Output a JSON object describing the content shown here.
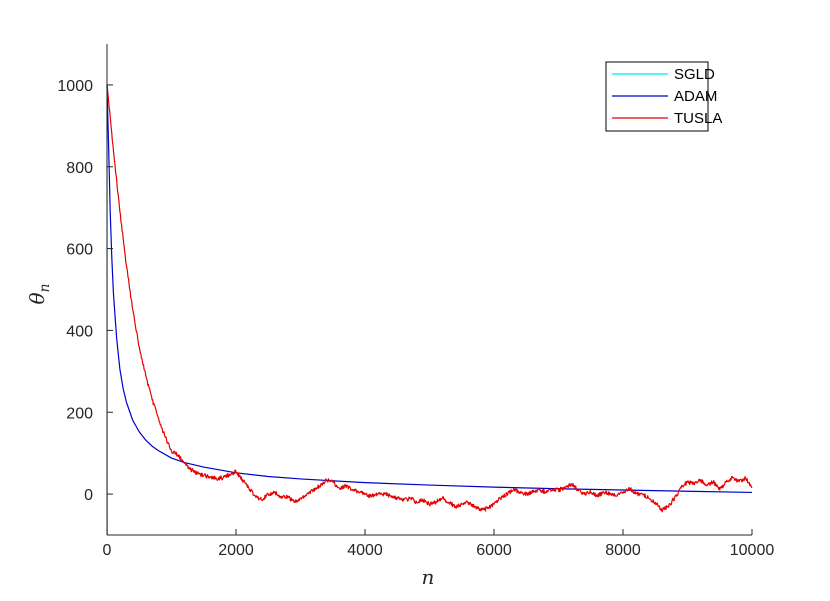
{
  "chart_data": {
    "type": "line",
    "xlabel": "n",
    "ylabel": {
      "base": "θ",
      "sub": "n"
    },
    "xlim": [
      0,
      10000
    ],
    "ylim": [
      -100,
      1100
    ],
    "xticks": [
      0,
      2000,
      4000,
      6000,
      8000,
      10000
    ],
    "yticks": [
      0,
      200,
      400,
      600,
      800,
      1000
    ],
    "xtick_labels": [
      "0",
      "2000",
      "4000",
      "6000",
      "8000",
      "10000"
    ],
    "ytick_labels": [
      "0",
      "200",
      "400",
      "600",
      "800",
      "1000"
    ],
    "grid": false,
    "legend_position": "top-right",
    "series": [
      {
        "name": "SGLD",
        "color": "#00e5e5",
        "x": [
          0,
          1,
          2,
          3,
          5,
          8
        ],
        "y": [
          1000,
          600,
          200,
          0,
          -100,
          -100
        ]
      },
      {
        "name": "ADAM",
        "color": "#0000cc",
        "x": [
          0,
          25,
          50,
          75,
          100,
          150,
          200,
          250,
          300,
          400,
          500,
          600,
          700,
          800,
          1000,
          1200,
          1500,
          2000,
          2500,
          3000,
          4000,
          5000,
          6000,
          7000,
          8000,
          9000,
          10000
        ],
        "y": [
          1000,
          850,
          690,
          575,
          490,
          380,
          305,
          258,
          225,
          180,
          152,
          132,
          117,
          106,
          88,
          77,
          66,
          52,
          43,
          37,
          28,
          22,
          17,
          13,
          10,
          7,
          4
        ]
      },
      {
        "name": "TUSLA",
        "color": "#e60000",
        "x": [
          0,
          100,
          200,
          300,
          400,
          500,
          600,
          700,
          800,
          900,
          1000,
          1100,
          1200,
          1300,
          1400,
          1500,
          1600,
          1700,
          1800,
          1900,
          2000,
          2100,
          2200,
          2300,
          2400,
          2500,
          2600,
          2700,
          2800,
          2900,
          3000,
          3100,
          3200,
          3300,
          3400,
          3500,
          3600,
          3700,
          3800,
          3900,
          4000,
          4100,
          4200,
          4300,
          4400,
          4500,
          4600,
          4700,
          4800,
          4900,
          5000,
          5100,
          5200,
          5300,
          5400,
          5500,
          5600,
          5700,
          5800,
          5900,
          6000,
          6100,
          6200,
          6300,
          6400,
          6500,
          6600,
          6700,
          6800,
          6900,
          7000,
          7100,
          7200,
          7300,
          7400,
          7500,
          7600,
          7700,
          7800,
          7900,
          8000,
          8100,
          8200,
          8300,
          8400,
          8500,
          8600,
          8700,
          8800,
          8900,
          9000,
          9100,
          9200,
          9300,
          9400,
          9500,
          9600,
          9700,
          9800,
          9900,
          10000
        ],
        "y": [
          1000,
          840,
          690,
          560,
          450,
          360,
          290,
          230,
          185,
          140,
          105,
          95,
          75,
          60,
          50,
          45,
          42,
          38,
          40,
          48,
          55,
          35,
          15,
          -5,
          -15,
          0,
          5,
          -10,
          -5,
          -20,
          -10,
          0,
          10,
          20,
          35,
          30,
          15,
          20,
          10,
          5,
          0,
          -5,
          0,
          0,
          -5,
          -10,
          -15,
          -10,
          -20,
          -15,
          -25,
          -20,
          -10,
          -20,
          -30,
          -25,
          -20,
          -30,
          -40,
          -35,
          -25,
          -10,
          0,
          10,
          5,
          0,
          5,
          10,
          5,
          10,
          10,
          15,
          25,
          10,
          0,
          5,
          -5,
          5,
          0,
          -5,
          5,
          15,
          0,
          0,
          -10,
          -20,
          -40,
          -30,
          -10,
          15,
          30,
          25,
          35,
          20,
          30,
          10,
          30,
          40,
          30,
          40,
          15
        ]
      }
    ]
  }
}
